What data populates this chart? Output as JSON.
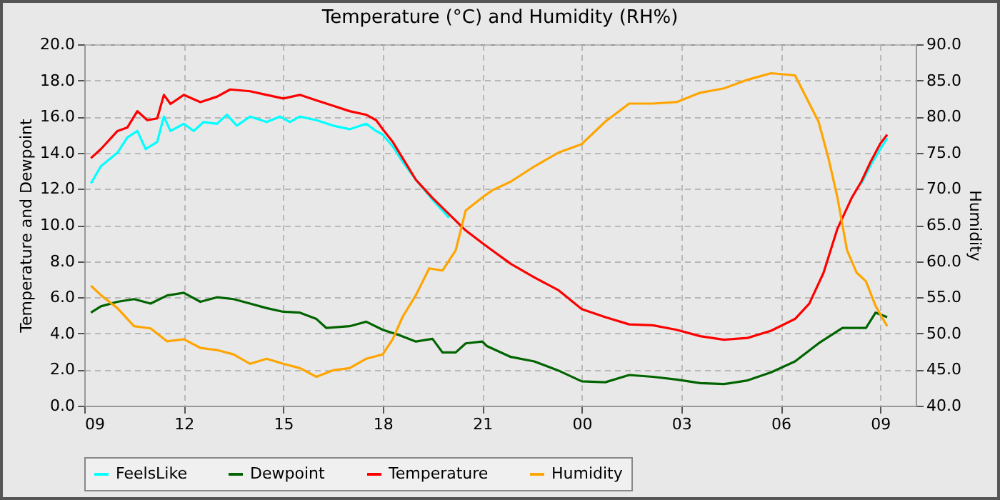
{
  "chart_data": {
    "type": "line",
    "title": "Temperature (°C) and Humidity (RH%)",
    "ylabel": "Temperature and Dewpoint",
    "y2label": "Humidity",
    "xlim": [
      9,
      34.07
    ],
    "xticks": [
      {
        "value": 9,
        "label": "09"
      },
      {
        "value": 12,
        "label": "12"
      },
      {
        "value": 15,
        "label": "15"
      },
      {
        "value": 18,
        "label": "18"
      },
      {
        "value": 21,
        "label": "21"
      },
      {
        "value": 24,
        "label": "00"
      },
      {
        "value": 27,
        "label": "03"
      },
      {
        "value": 30,
        "label": "06"
      },
      {
        "value": 33,
        "label": "09"
      }
    ],
    "ylim": [
      0,
      20
    ],
    "yticks": [
      {
        "value": 0,
        "label": "0.0"
      },
      {
        "value": 2,
        "label": "2.0"
      },
      {
        "value": 4,
        "label": "4.0"
      },
      {
        "value": 6,
        "label": "6.0"
      },
      {
        "value": 8,
        "label": "8.0"
      },
      {
        "value": 10,
        "label": "10.0"
      },
      {
        "value": 12,
        "label": "12.0"
      },
      {
        "value": 14,
        "label": "14.0"
      },
      {
        "value": 16,
        "label": "16.0"
      },
      {
        "value": 18,
        "label": "18.0"
      },
      {
        "value": 20,
        "label": "20.0"
      }
    ],
    "y2lim": [
      40,
      90
    ],
    "y2ticks": [
      {
        "value": 40,
        "label": "40.0"
      },
      {
        "value": 45,
        "label": "45.0"
      },
      {
        "value": 50,
        "label": "50.0"
      },
      {
        "value": 55,
        "label": "55.0"
      },
      {
        "value": 60,
        "label": "60.0"
      },
      {
        "value": 65,
        "label": "65.0"
      },
      {
        "value": 70,
        "label": "70.0"
      },
      {
        "value": 75,
        "label": "75.0"
      },
      {
        "value": 80,
        "label": "80.0"
      },
      {
        "value": 85,
        "label": "85.0"
      },
      {
        "value": 90,
        "label": "90.0"
      }
    ],
    "grid": true,
    "legend": "bottom",
    "line_style": "solid",
    "marker": "none",
    "series": [
      {
        "name": "FeelsLike",
        "color": "#00ffff",
        "x": [
          9.2,
          9.5,
          10,
          10.3,
          10.6,
          10.85,
          11.2,
          11.4,
          11.6,
          12,
          12.3,
          12.6,
          13,
          13.3,
          13.6,
          14,
          14.5,
          14.9,
          15.2,
          15.5,
          16,
          16.5,
          17,
          17.5,
          17.8,
          18,
          18.3,
          18.6,
          19,
          19.5,
          20,
          20.3,
          32.3,
          32.43,
          32.71,
          33,
          33.21
        ],
        "values": [
          12.3,
          13.25,
          14.0,
          14.85,
          15.2,
          14.2,
          14.6,
          16.0,
          15.2,
          15.6,
          15.2,
          15.7,
          15.6,
          16.1,
          15.5,
          16.0,
          15.7,
          16.0,
          15.7,
          16.0,
          15.8,
          15.5,
          15.3,
          15.6,
          15.2,
          15.0,
          14.35,
          13.5,
          12.5,
          11.4,
          10.4,
          null,
          null,
          12.3,
          13.3,
          14.2,
          14.8
        ]
      },
      {
        "name": "Dewpoint",
        "color": "#006400",
        "x": [
          9.2,
          9.5,
          10,
          10.5,
          11,
          11.5,
          12,
          12.5,
          13,
          13.5,
          14,
          14.5,
          15,
          15.5,
          16,
          16.3,
          17,
          17.5,
          18,
          18.5,
          19,
          19.5,
          19.8,
          20.2,
          20.5,
          21,
          21.14,
          21.86,
          22.57,
          23.29,
          24,
          24.71,
          25.43,
          26.14,
          26.86,
          27.57,
          28.29,
          29,
          29.71,
          30.43,
          31.14,
          31.86,
          32.57,
          32.86,
          33.21
        ],
        "values": [
          5.15,
          5.5,
          5.75,
          5.9,
          5.65,
          6.1,
          6.25,
          5.75,
          6.0,
          5.9,
          5.65,
          5.4,
          5.2,
          5.15,
          4.8,
          4.3,
          4.4,
          4.65,
          4.2,
          3.9,
          3.55,
          3.7,
          2.95,
          2.95,
          3.45,
          3.55,
          3.3,
          2.7,
          2.45,
          1.95,
          1.35,
          1.3,
          1.7,
          1.6,
          1.45,
          1.25,
          1.2,
          1.4,
          1.85,
          2.45,
          3.45,
          4.3,
          4.3,
          5.15,
          4.9
        ]
      },
      {
        "name": "Temperature",
        "color": "#ff0000",
        "x": [
          9.2,
          9.5,
          10,
          10.3,
          10.6,
          10.9,
          11.2,
          11.4,
          11.6,
          12,
          12.5,
          13,
          13.4,
          14,
          14.5,
          15,
          15.5,
          16,
          16.5,
          17,
          17.5,
          17.8,
          18,
          18.3,
          18.6,
          19,
          19.5,
          20,
          20.5,
          21,
          21.3,
          21.86,
          22.57,
          23.29,
          24,
          24.71,
          25.43,
          26.14,
          26.86,
          27.57,
          28.29,
          29,
          29.71,
          30.43,
          30.86,
          31.29,
          31.71,
          32.14,
          32.43,
          32.71,
          33,
          33.21
        ],
        "values": [
          13.7,
          14.2,
          15.2,
          15.4,
          16.3,
          15.8,
          15.9,
          17.2,
          16.7,
          17.2,
          16.8,
          17.1,
          17.5,
          17.4,
          17.2,
          17.0,
          17.2,
          16.9,
          16.6,
          16.3,
          16.1,
          15.8,
          15.3,
          14.6,
          13.7,
          12.5,
          11.5,
          10.6,
          9.7,
          9.0,
          8.6,
          7.85,
          7.1,
          6.4,
          5.35,
          4.9,
          4.5,
          4.45,
          4.2,
          3.85,
          3.65,
          3.75,
          4.15,
          4.8,
          5.65,
          7.35,
          9.8,
          11.5,
          12.4,
          13.5,
          14.5,
          15.0
        ]
      },
      {
        "name": "Humidity",
        "color": "#ffa500",
        "axis": "y2",
        "x": [
          9.2,
          9.5,
          10,
          10.5,
          11,
          11.5,
          12,
          12.5,
          13,
          13.5,
          14,
          14.5,
          15,
          15.5,
          16,
          16.5,
          17,
          17.5,
          18,
          18.3,
          18.6,
          19,
          19.4,
          19.8,
          20.2,
          20.5,
          21,
          21.3,
          21.86,
          22.57,
          23.29,
          24,
          24.71,
          25.43,
          26.14,
          26.86,
          27.57,
          28.29,
          29,
          29.71,
          30.43,
          31.14,
          31.43,
          31.71,
          32,
          32.29,
          32.57,
          32.86,
          33.21
        ],
        "values": [
          56.6,
          55.3,
          53.5,
          51.0,
          50.7,
          48.9,
          49.2,
          48.0,
          47.7,
          47.1,
          45.8,
          46.5,
          45.8,
          45.2,
          44.0,
          44.9,
          45.2,
          46.5,
          47.1,
          49.2,
          52.3,
          55.3,
          59.0,
          58.7,
          61.5,
          67.0,
          68.8,
          69.8,
          71.0,
          73.1,
          75.0,
          76.2,
          79.3,
          81.8,
          81.8,
          82.0,
          83.3,
          83.9,
          85.1,
          86.0,
          85.7,
          79.3,
          74.4,
          68.8,
          61.5,
          58.4,
          57.2,
          53.8,
          51.0
        ]
      }
    ]
  }
}
